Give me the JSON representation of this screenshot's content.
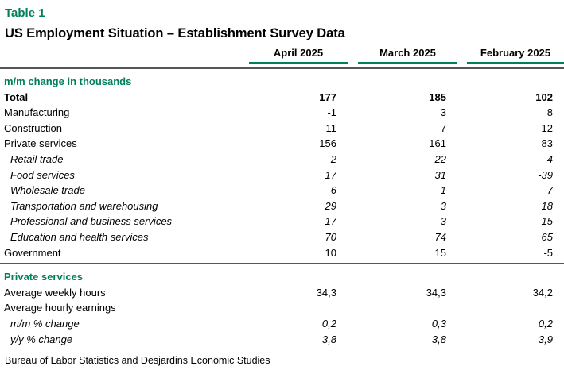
{
  "colors": {
    "accent_green": "#00805A",
    "rule_gray": "#54565A",
    "text": "#000000",
    "background": "#FFFFFF"
  },
  "table_label": "Table 1",
  "title": "US Employment Situation – Establishment Survey Data",
  "columns": [
    "April 2025",
    "March 2025",
    "February 2025"
  ],
  "sections": [
    {
      "header": "m/m change in thousands",
      "rows": [
        {
          "label": "Total",
          "bold": true,
          "italic": false,
          "indent": false,
          "values": [
            "177",
            "185",
            "102"
          ]
        },
        {
          "label": "Manufacturing",
          "bold": false,
          "italic": false,
          "indent": false,
          "values": [
            "-1",
            "3",
            "8"
          ]
        },
        {
          "label": "Construction",
          "bold": false,
          "italic": false,
          "indent": false,
          "values": [
            "11",
            "7",
            "12"
          ]
        },
        {
          "label": "Private services",
          "bold": false,
          "italic": false,
          "indent": false,
          "values": [
            "156",
            "161",
            "83"
          ]
        },
        {
          "label": "Retail trade",
          "bold": false,
          "italic": true,
          "indent": true,
          "values": [
            "-2",
            "22",
            "-4"
          ]
        },
        {
          "label": "Food services",
          "bold": false,
          "italic": true,
          "indent": true,
          "values": [
            "17",
            "31",
            "-39"
          ]
        },
        {
          "label": "Wholesale trade",
          "bold": false,
          "italic": true,
          "indent": true,
          "values": [
            "6",
            "-1",
            "7"
          ]
        },
        {
          "label": "Transportation and warehousing",
          "bold": false,
          "italic": true,
          "indent": true,
          "values": [
            "29",
            "3",
            "18"
          ]
        },
        {
          "label": "Professional and business services",
          "bold": false,
          "italic": true,
          "indent": true,
          "values": [
            "17",
            "3",
            "15"
          ]
        },
        {
          "label": "Education and health services",
          "bold": false,
          "italic": true,
          "indent": true,
          "values": [
            "70",
            "74",
            "65"
          ]
        },
        {
          "label": "Government",
          "bold": false,
          "italic": false,
          "indent": false,
          "values": [
            "10",
            "15",
            "-5"
          ]
        }
      ]
    },
    {
      "header": "Private services",
      "rows": [
        {
          "label": "Average weekly hours",
          "bold": false,
          "italic": false,
          "indent": false,
          "values": [
            "34,3",
            "34,3",
            "34,2"
          ]
        },
        {
          "label": "Average hourly earnings",
          "bold": false,
          "italic": false,
          "indent": false,
          "values": [
            "",
            "",
            ""
          ]
        },
        {
          "label": "m/m % change",
          "bold": false,
          "italic": true,
          "indent": true,
          "values": [
            "0,2",
            "0,3",
            "0,2"
          ]
        },
        {
          "label": "y/y % change",
          "bold": false,
          "italic": true,
          "indent": true,
          "values": [
            "3,8",
            "3,8",
            "3,9"
          ]
        }
      ]
    }
  ],
  "footer": "Bureau of Labor Statistics and Desjardins Economic Studies",
  "chart_data": {
    "type": "table",
    "title": "US Employment Situation – Establishment Survey Data",
    "columns": [
      "",
      "April 2025",
      "March 2025",
      "February 2025"
    ],
    "rows": [
      [
        "Total (m/m change in thousands)",
        177,
        185,
        102
      ],
      [
        "Manufacturing",
        -1,
        3,
        8
      ],
      [
        "Construction",
        11,
        7,
        12
      ],
      [
        "Private services",
        156,
        161,
        83
      ],
      [
        "Retail trade",
        -2,
        22,
        -4
      ],
      [
        "Food services",
        17,
        31,
        -39
      ],
      [
        "Wholesale trade",
        6,
        -1,
        7
      ],
      [
        "Transportation and warehousing",
        29,
        3,
        18
      ],
      [
        "Professional and business services",
        17,
        3,
        15
      ],
      [
        "Education and health services",
        70,
        74,
        65
      ],
      [
        "Government",
        10,
        15,
        -5
      ],
      [
        "Private services — Average weekly hours",
        34.3,
        34.3,
        34.2
      ],
      [
        "Average hourly earnings — m/m % change",
        0.2,
        0.3,
        0.2
      ],
      [
        "Average hourly earnings — y/y % change",
        3.8,
        3.8,
        3.9
      ]
    ],
    "source": "Bureau of Labor Statistics and Desjardins Economic Studies"
  }
}
